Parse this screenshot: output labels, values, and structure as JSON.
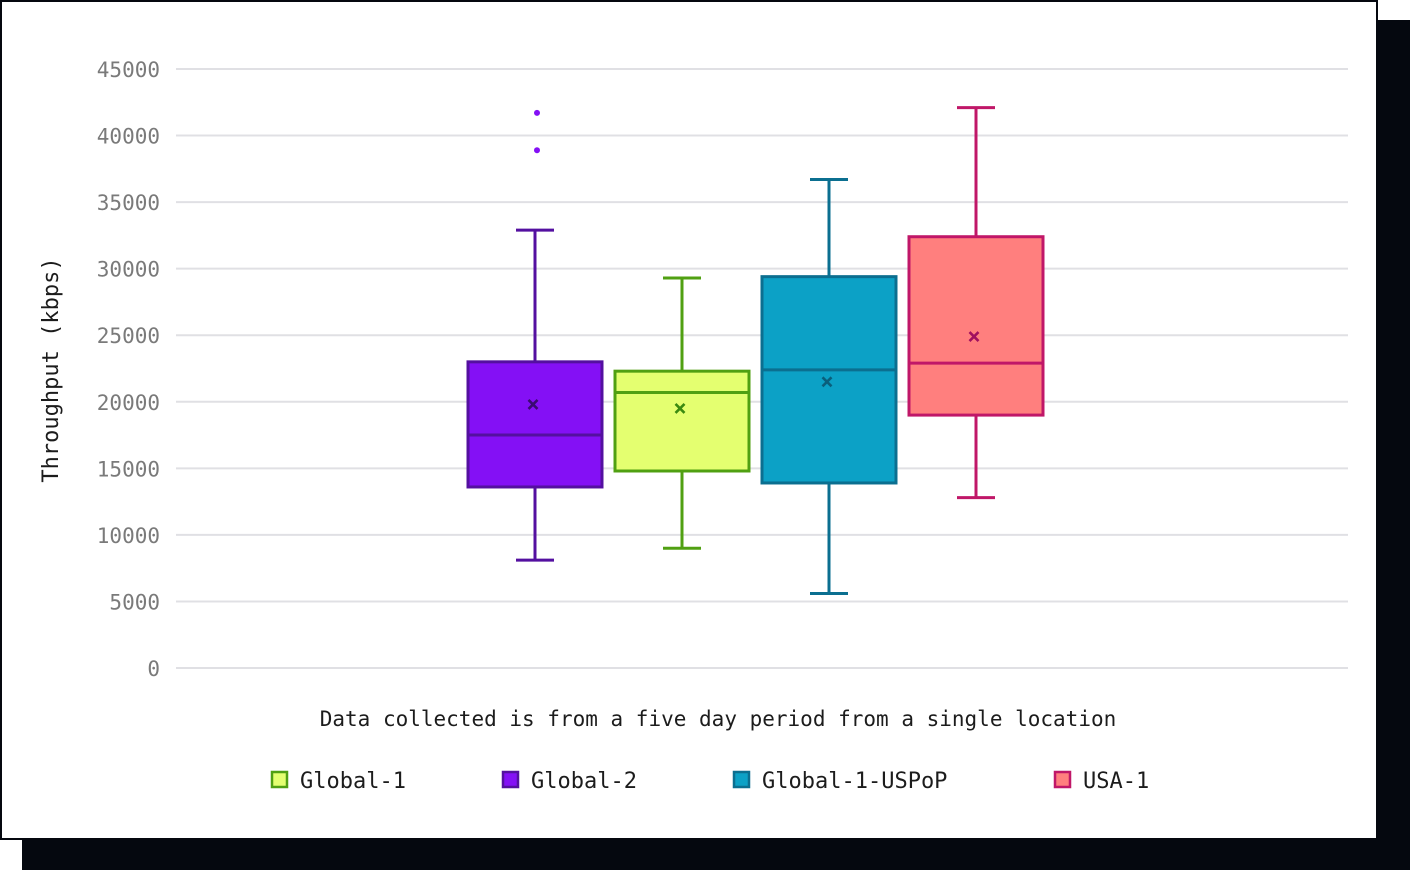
{
  "chart_data": {
    "type": "box",
    "ylabel": "Throughput (kbps)",
    "xlabel": "Data collected is from a five day period from a single location",
    "ylim": [
      0,
      45000
    ],
    "yticks": [
      0,
      5000,
      10000,
      15000,
      20000,
      25000,
      30000,
      35000,
      40000,
      45000
    ],
    "grid": true,
    "legend_position": "bottom",
    "series": [
      {
        "name": "Global-2",
        "fill": "#8410f5",
        "stroke": "#5410a0",
        "mean_color": "#3a0a70",
        "min": 8100,
        "q1": 13600,
        "median": 17500,
        "q3": 23000,
        "max": 32900,
        "mean": 19800,
        "outliers": [
          38900,
          41700
        ]
      },
      {
        "name": "Global-1",
        "fill": "#e4ff70",
        "stroke": "#50a012",
        "mean_color": "#3a8a10",
        "min": 9000,
        "q1": 14800,
        "median": 20700,
        "q3": 22300,
        "max": 29300,
        "mean": 19500,
        "outliers": []
      },
      {
        "name": "Global-1-USPoP",
        "fill": "#0ca1c6",
        "stroke": "#0b6f90",
        "mean_color": "#0a5f7c",
        "min": 5600,
        "q1": 13900,
        "median": 22400,
        "q3": 29400,
        "max": 36700,
        "mean": 21500,
        "outliers": []
      },
      {
        "name": "USA-1",
        "fill": "#ff7f7e",
        "stroke": "#c01768",
        "mean_color": "#a01060",
        "min": 12800,
        "q1": 19000,
        "median": 22900,
        "q3": 32400,
        "max": 42100,
        "mean": 24900,
        "outliers": []
      }
    ],
    "legend": [
      {
        "name": "Global-1",
        "fill": "#e4ff70",
        "stroke": "#50a012"
      },
      {
        "name": "Global-2",
        "fill": "#8410f5",
        "stroke": "#5410a0"
      },
      {
        "name": "Global-1-USPoP",
        "fill": "#0ca1c6",
        "stroke": "#0b6f90"
      },
      {
        "name": "USA-1",
        "fill": "#ff7f7e",
        "stroke": "#c01768"
      }
    ]
  }
}
